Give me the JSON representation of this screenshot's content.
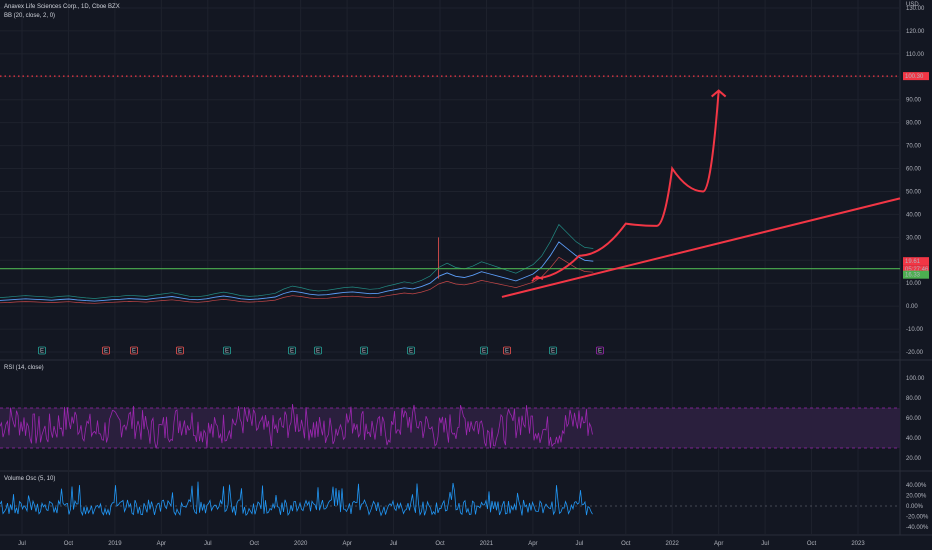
{
  "header": {
    "title": "Anavex Life Sciences Corp., 1D, Cboe BZX",
    "indicator": "BB (20, close, 2, 0)"
  },
  "price_axis": {
    "currency": "USD",
    "ticks": [
      "130.00",
      "120.00",
      "110.00",
      "100.00",
      "90.00",
      "80.00",
      "70.00",
      "60.00",
      "50.00",
      "40.00",
      "30.00",
      "20.00",
      "10.00",
      "0.00",
      "-10.00",
      "-20.00"
    ],
    "target_label": "100.30",
    "last_price_label": "19.61",
    "countdown_label": "05:27:46",
    "support_label": "16.33"
  },
  "rsi": {
    "title": "RSI (14, close)",
    "ticks": [
      "100.00",
      "80.00",
      "60.00",
      "40.00",
      "20.00"
    ]
  },
  "volume_osc": {
    "title": "Volume Osc (5, 10)",
    "ticks": [
      "40.00%",
      "20.00%",
      "0.00%",
      "-20.00%",
      "-40.00%"
    ]
  },
  "time_axis": {
    "labels": [
      "Jul",
      "Oct",
      "2019",
      "Apr",
      "Jul",
      "Oct",
      "2020",
      "Apr",
      "Jul",
      "Oct",
      "2021",
      "Apr",
      "Jul",
      "Oct",
      "2022",
      "Apr",
      "Jul",
      "Oct",
      "2023"
    ]
  },
  "event_markers": [
    {
      "letter": "E",
      "color": "#26a69a"
    },
    {
      "letter": "E",
      "color": "#ef5350"
    },
    {
      "letter": "E",
      "color": "#ef5350"
    },
    {
      "letter": "E",
      "color": "#ef5350"
    },
    {
      "letter": "E",
      "color": "#26a69a"
    },
    {
      "letter": "E",
      "color": "#26a69a"
    },
    {
      "letter": "E",
      "color": "#26a69a"
    },
    {
      "letter": "E",
      "color": "#26a69a"
    },
    {
      "letter": "E",
      "color": "#26a69a"
    },
    {
      "letter": "E",
      "color": "#26a69a"
    },
    {
      "letter": "E",
      "color": "#ef5350"
    },
    {
      "letter": "E",
      "color": "#26a69a"
    },
    {
      "letter": "E",
      "color": "#9c27b0"
    }
  ],
  "colors": {
    "background": "#131722",
    "grid": "#1e222d",
    "price_line": "#5b9cf6",
    "bb_upper": "#26a69a",
    "bb_lower": "#ef5350",
    "support_line": "#4caf50",
    "target_line": "#f23645",
    "drawing": "#f23645",
    "rsi_line": "#9c27b0",
    "rsi_band": "#2a1f3d",
    "vol_line": "#2196f3"
  },
  "chart_data": {
    "type": "line",
    "series": [
      {
        "values": [
          2.5,
          2.7,
          3.0,
          3.2,
          3.0,
          2.8,
          2.6,
          2.9,
          3.1,
          2.7,
          2.4,
          2.2,
          2.5,
          2.8,
          3.0,
          3.3,
          3.1,
          2.9,
          3.4,
          3.8,
          4.2,
          3.6,
          3.0,
          2.8,
          3.2,
          3.9,
          4.4,
          3.9,
          3.2,
          2.9,
          3.1,
          3.5,
          4.0,
          5.5,
          6.5,
          6.0,
          5.2,
          4.8,
          5.0,
          5.5,
          6.0,
          6.2,
          5.8,
          5.4,
          5.6,
          6.5,
          7.2,
          8.0,
          7.5,
          8.5,
          10.0,
          13.0,
          14.5,
          13.0,
          12.5,
          13.5,
          15.0,
          14.0,
          13.0,
          12.0,
          11.0,
          12.5,
          14.0,
          17.0,
          22.0,
          28.0,
          25.0,
          22.0,
          20.0,
          19.61
        ]
      }
    ],
    "target_level": 100.3,
    "support_level": 16.33,
    "projection_path_values": [
      {
        "time": "2021-04",
        "value": 12
      },
      {
        "time": "2021-07",
        "value": 22
      },
      {
        "time": "2021-10",
        "value": 36
      },
      {
        "time": "2021-12",
        "value": 35
      },
      {
        "time": "2022-01",
        "value": 60
      },
      {
        "time": "2022-03",
        "value": 50
      },
      {
        "time": "2022-04",
        "value": 94
      }
    ],
    "trendline": [
      {
        "time": "2021-02",
        "value": 4
      },
      {
        "time": "2023-06",
        "value": 47
      }
    ],
    "ylim": [
      -20,
      130
    ]
  }
}
